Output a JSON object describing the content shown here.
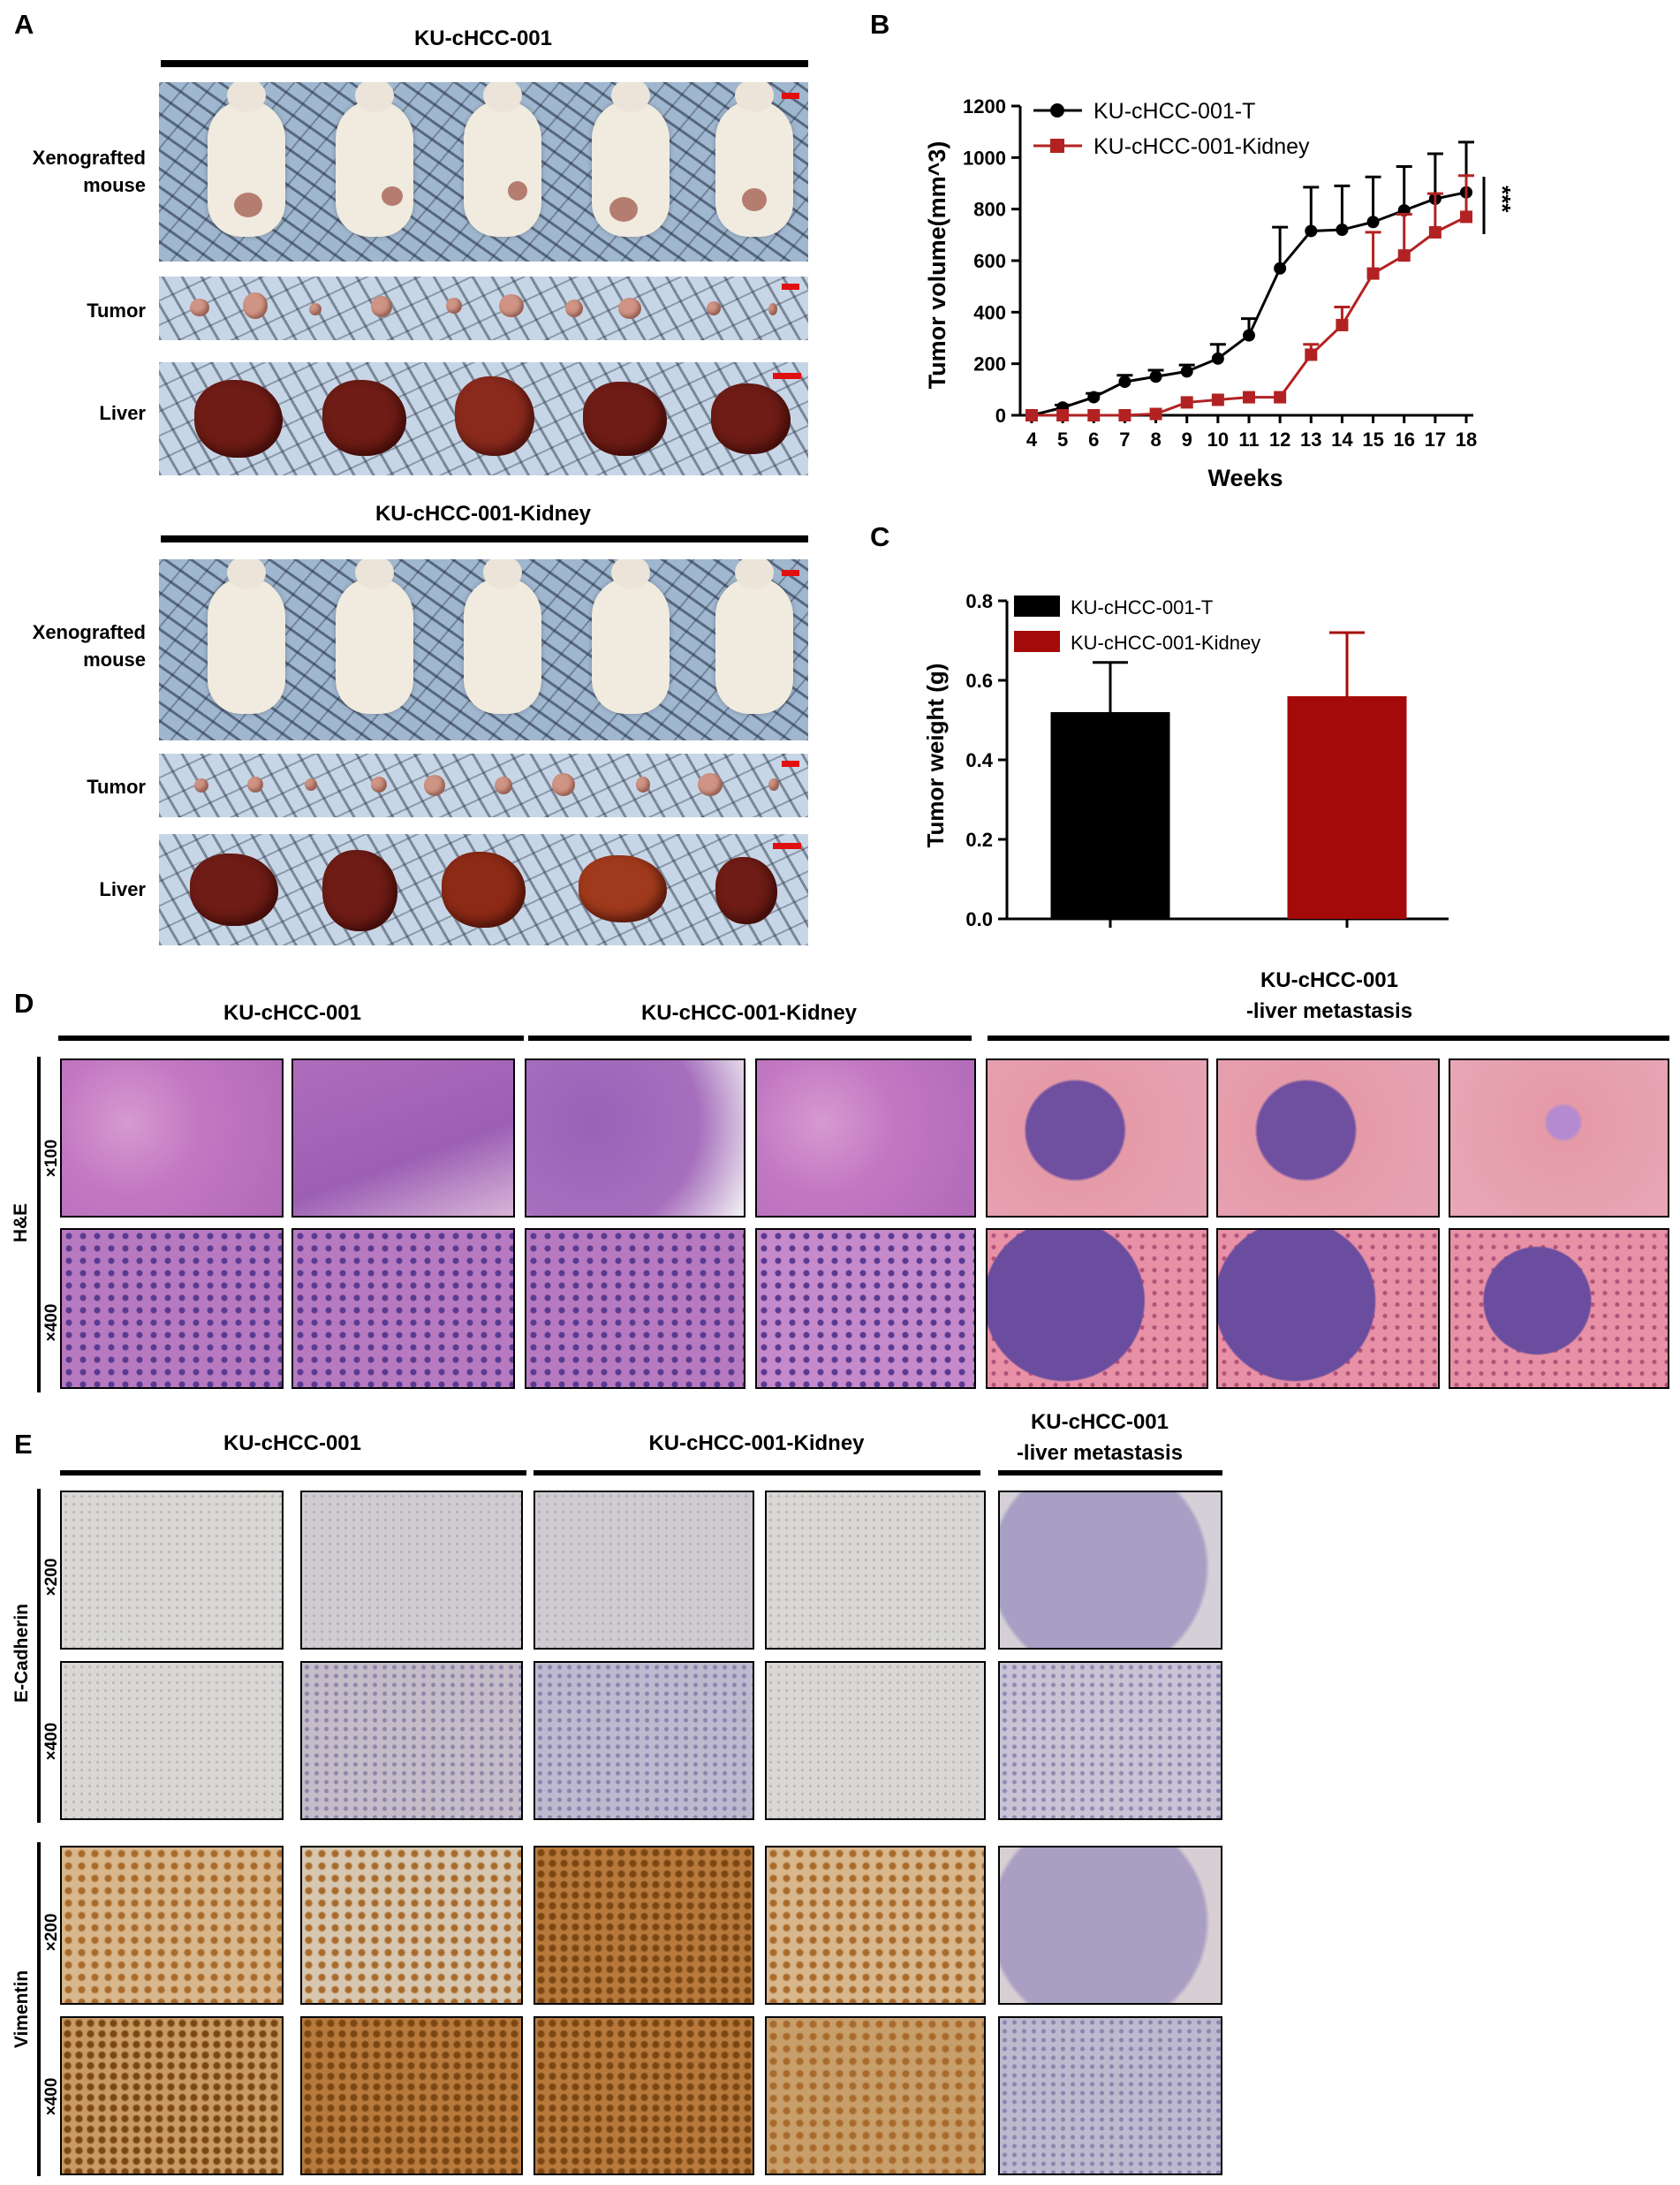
{
  "panel_labels": {
    "a": "A",
    "b": "B",
    "c": "C",
    "d": "D",
    "e": "E"
  },
  "panel_a": {
    "group1_title": "KU-cHCC-001",
    "group2_title": "KU-cHCC-001-Kidney",
    "row_xenograft": [
      "Xenografted",
      "mouse"
    ],
    "row_tumor": "Tumor",
    "row_liver": "Liver"
  },
  "panel_d": {
    "col_titles": [
      "KU-cHCC-001",
      "KU-cHCC-001-Kidney",
      "KU-cHCC-001",
      "-liver metastasis"
    ],
    "stain": "H&E",
    "mag": [
      "×100",
      "×400"
    ]
  },
  "panel_e": {
    "col_titles": [
      "KU-cHCC-001",
      "KU-cHCC-001-Kidney",
      "KU-cHCC-001",
      "-liver metastasis"
    ],
    "stain1": "E-Cadherin",
    "stain2": "Vimentin",
    "mag": [
      "×200",
      "×400"
    ]
  },
  "chart_data": [
    {
      "type": "line",
      "panel": "B",
      "xlabel": "Weeks",
      "ylabel": "Tumor volume(mm^3)",
      "x": [
        4,
        5,
        6,
        7,
        8,
        9,
        10,
        11,
        12,
        13,
        14,
        15,
        16,
        17,
        18
      ],
      "xticks": [
        "4",
        "5",
        "6",
        "7",
        "8",
        "9",
        "10",
        "11",
        "12",
        "13",
        "14",
        "15",
        "16",
        "17",
        "18"
      ],
      "ylim": [
        0,
        1200
      ],
      "yticks": [
        "0",
        "200",
        "400",
        "600",
        "800",
        "1000",
        "1200"
      ],
      "annotation": "***",
      "legend_position": "top-left",
      "series": [
        {
          "name": "KU-cHCC-001-T",
          "color": "#000000",
          "marker": "circle",
          "values": [
            0,
            30,
            70,
            130,
            150,
            170,
            220,
            310,
            570,
            715,
            720,
            750,
            795,
            840,
            865
          ],
          "errors": [
            0,
            10,
            15,
            25,
            25,
            25,
            55,
            65,
            160,
            170,
            170,
            175,
            170,
            175,
            195
          ]
        },
        {
          "name": "KU-cHCC-001-Kidney",
          "color": "#b22222",
          "marker": "square",
          "values": [
            0,
            0,
            0,
            0,
            5,
            50,
            60,
            70,
            70,
            235,
            350,
            550,
            620,
            710,
            770
          ],
          "errors": [
            0,
            0,
            0,
            0,
            0,
            0,
            0,
            0,
            0,
            40,
            70,
            160,
            160,
            150,
            160
          ]
        }
      ]
    },
    {
      "type": "bar",
      "panel": "C",
      "ylabel": "Tumor weight (g)",
      "categories": [
        "KU-cHCC-001-T",
        "KU-cHCC-001-Kidney"
      ],
      "values": [
        0.52,
        0.56
      ],
      "errors": [
        0.125,
        0.16
      ],
      "colors": [
        "#000000",
        "#a50a0a"
      ],
      "ylim": [
        0,
        0.8
      ],
      "yticks": [
        "0.0",
        "0.2",
        "0.4",
        "0.6",
        "0.8"
      ],
      "legend_position": "top-left"
    }
  ]
}
